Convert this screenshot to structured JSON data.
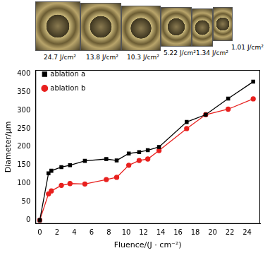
{
  "image_labels": [
    "24.7 J/cm²",
    "13.8 J/cm²",
    "10.3 J/cm²",
    "5.22 J/cm²",
    "1.34 J/cm²",
    "1.01 J/cm²"
  ],
  "chart_data": {
    "type": "line",
    "x_label": "Fluence/(J · cm⁻²)",
    "y_label": "Diameter/μm",
    "x": [
      0,
      1.01,
      1.34,
      2.5,
      3.5,
      5.22,
      7.7,
      8.9,
      10.3,
      11.5,
      12.5,
      13.8,
      17,
      19.2,
      21.8,
      24.7
    ],
    "series": [
      {
        "name": "ablation a",
        "color": "#000000",
        "marker": "square",
        "values": [
          0,
          128,
          135,
          145,
          150,
          162,
          167,
          163,
          182,
          186,
          191,
          200,
          268,
          288,
          332,
          378
        ]
      },
      {
        "name": "ablation b",
        "color": "#e8201e",
        "marker": "circle",
        "values": [
          0,
          72,
          80,
          95,
          100,
          99,
          111,
          117,
          150,
          163,
          167,
          190,
          250,
          288,
          303,
          331
        ]
      }
    ],
    "xlim": [
      -0.5,
      25.5
    ],
    "xticks": [
      0,
      2,
      4,
      6,
      8,
      10,
      12,
      14,
      16,
      18,
      20,
      22,
      24
    ],
    "ylim": [
      -10,
      410
    ],
    "yticks": [
      0,
      50,
      100,
      150,
      200,
      250,
      300,
      350,
      400
    ],
    "grid": false,
    "legend": "upper left"
  }
}
